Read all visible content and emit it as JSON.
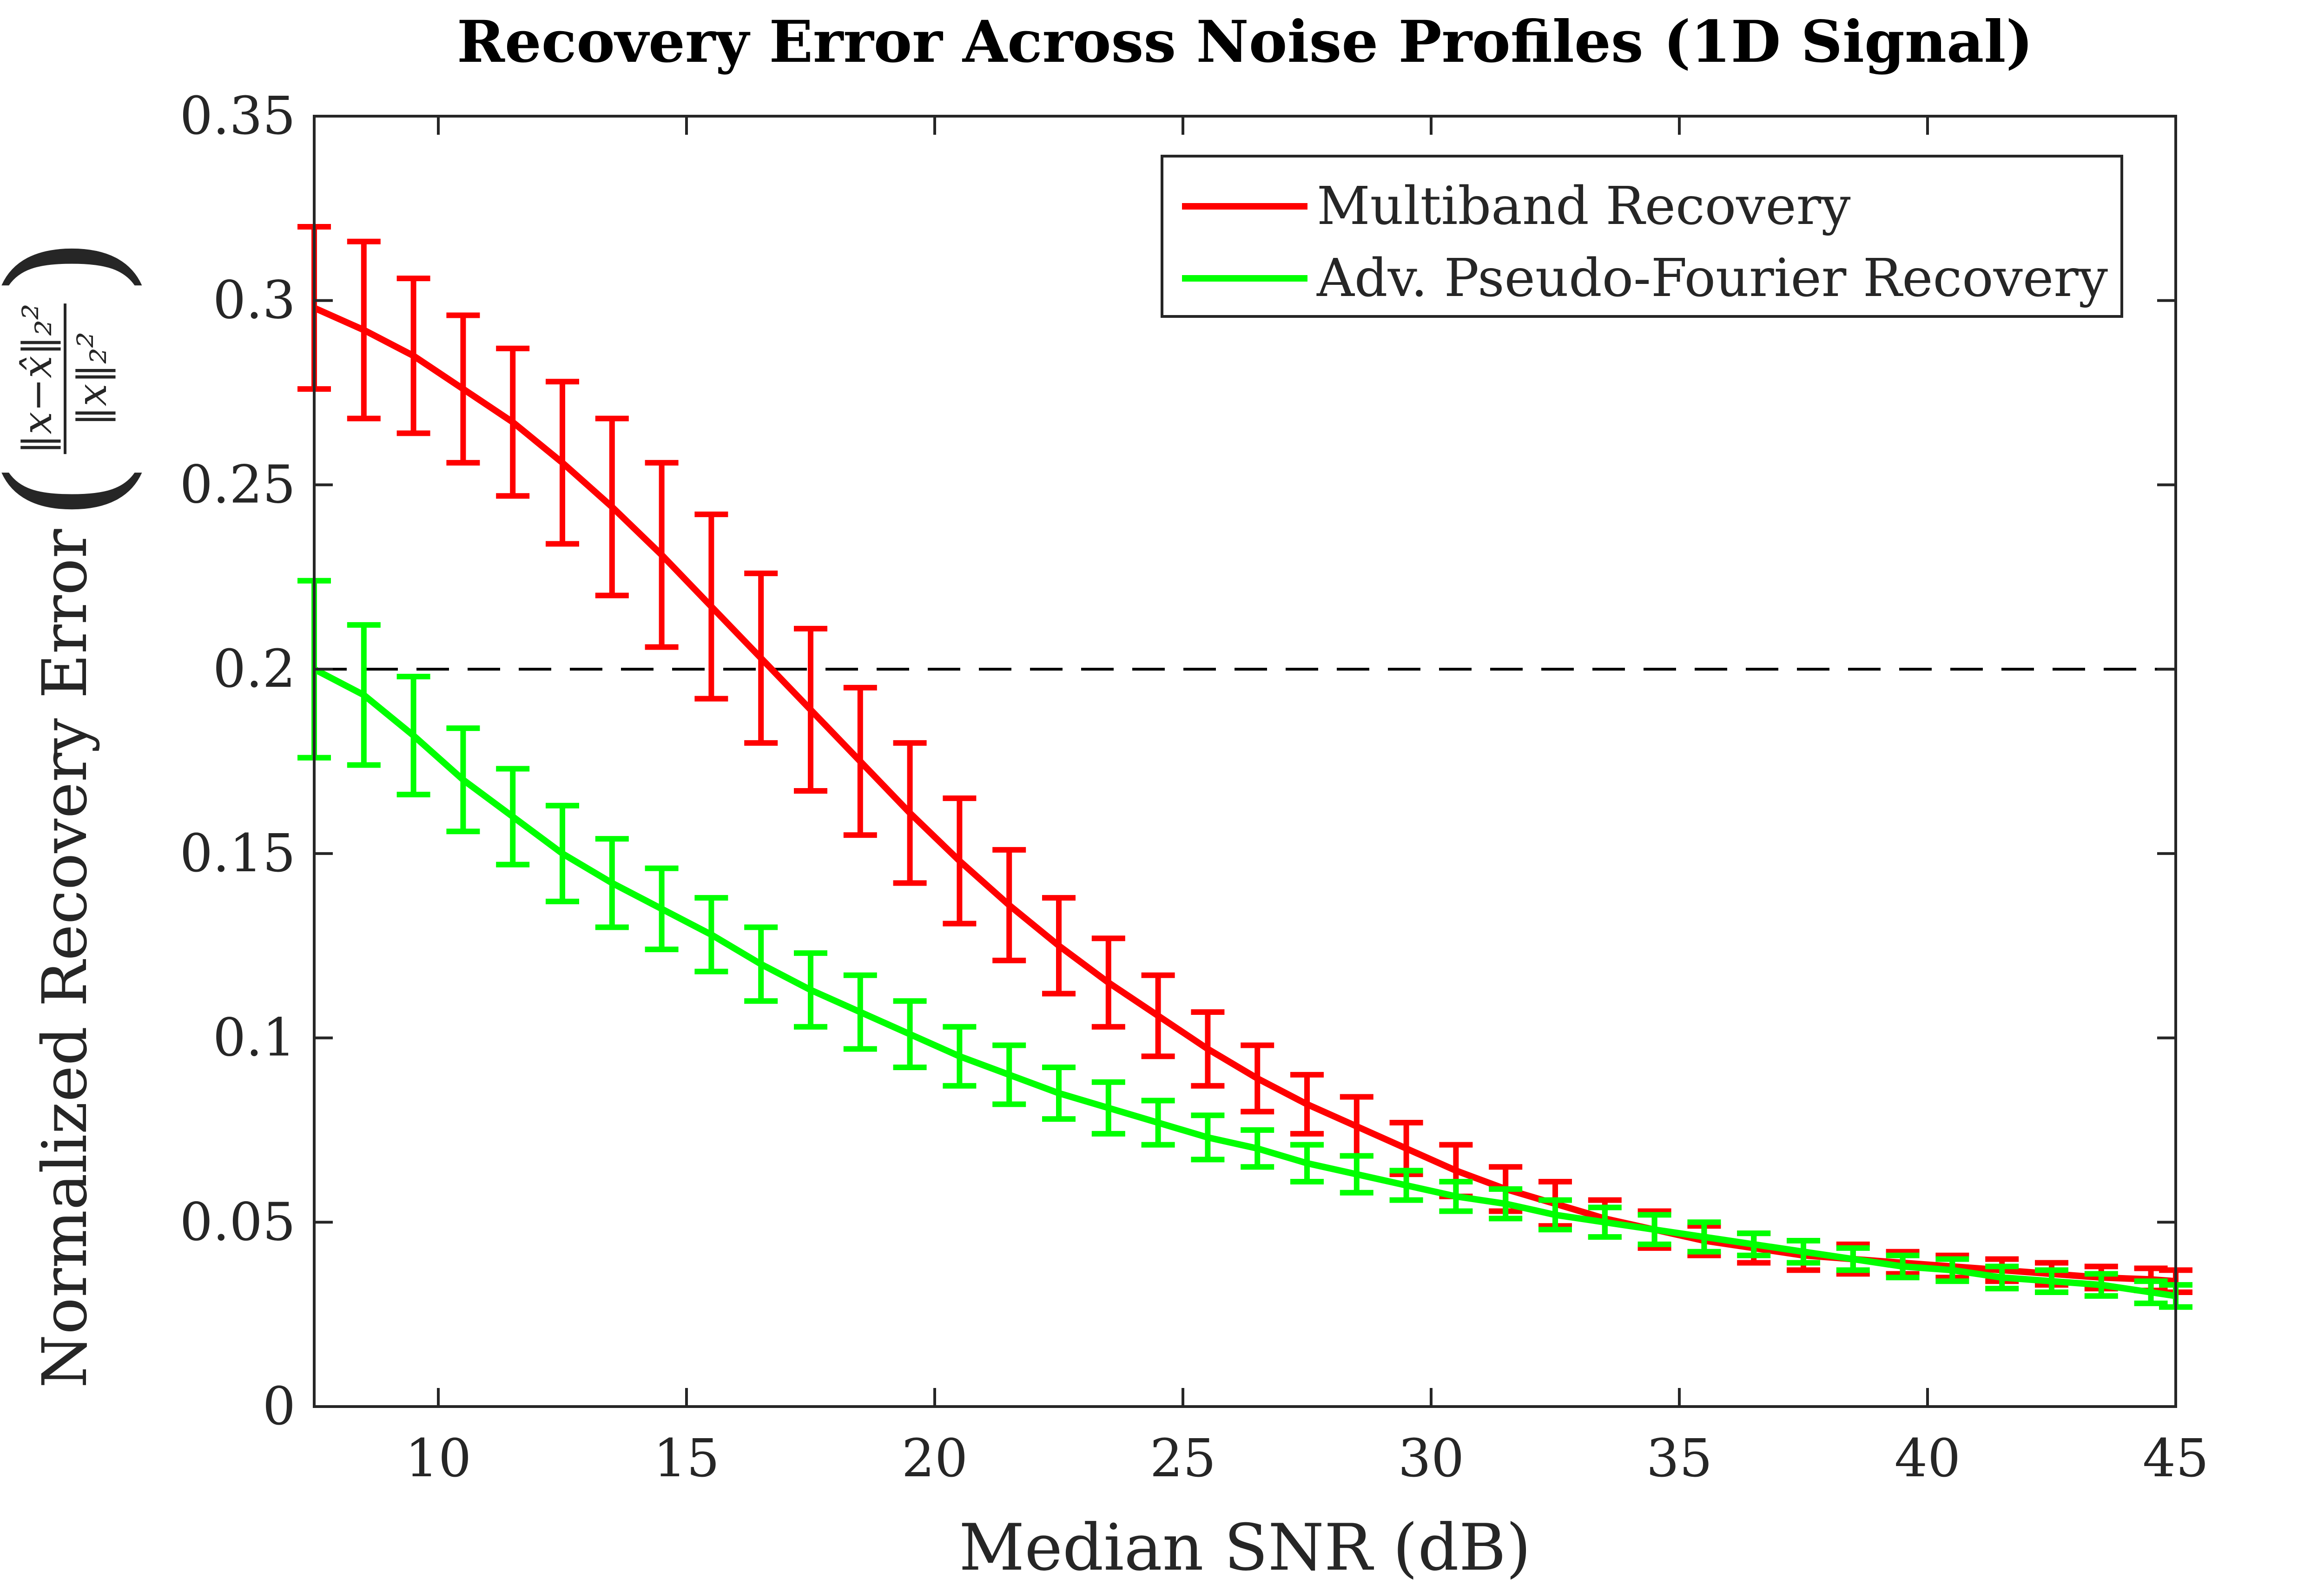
{
  "chart_data": {
    "type": "line",
    "title": "Recovery Error Across Noise Profiles (1D Signal)",
    "xlabel": "Median SNR (dB)",
    "ylabel_text": "Normalized Recovery Error",
    "ylabel_formula_numerator": "‖x−x̂‖₂²",
    "ylabel_formula_denominator": "‖x‖₂²",
    "xlim": [
      7.5,
      45
    ],
    "ylim": [
      0,
      0.35
    ],
    "xticks": [
      10,
      15,
      20,
      25,
      30,
      35,
      40,
      45
    ],
    "xtick_labels": [
      "10",
      "15",
      "20",
      "25",
      "30",
      "35",
      "40",
      "45"
    ],
    "yticks": [
      0,
      0.05,
      0.1,
      0.15,
      0.2,
      0.25,
      0.3,
      0.35
    ],
    "ytick_labels": [
      "0",
      "0.05",
      "0.1",
      "0.15",
      "0.2",
      "0.25",
      "0.3",
      "0.35"
    ],
    "reference_line": {
      "y": 0.2,
      "style": "dashed",
      "color": "#000000"
    },
    "legend_position": "top-right",
    "x": [
      7.5,
      8.5,
      9.5,
      10.5,
      11.5,
      12.5,
      13.5,
      14.5,
      15.5,
      16.5,
      17.5,
      18.5,
      19.5,
      20.5,
      21.5,
      22.5,
      23.5,
      24.5,
      25.5,
      26.5,
      27.5,
      28.5,
      29.5,
      30.5,
      31.5,
      32.5,
      33.5,
      34.5,
      35.5,
      36.5,
      37.5,
      38.5,
      39.5,
      40.5,
      41.5,
      42.5,
      43.5,
      44.5,
      45
    ],
    "series": [
      {
        "name": "Multiband Recovery",
        "color": "#ff0000",
        "values": [
          0.298,
          0.292,
          0.285,
          0.276,
          0.267,
          0.256,
          0.244,
          0.231,
          0.217,
          0.203,
          0.189,
          0.175,
          0.161,
          0.148,
          0.136,
          0.125,
          0.115,
          0.106,
          0.097,
          0.089,
          0.082,
          0.076,
          0.07,
          0.064,
          0.059,
          0.055,
          0.051,
          0.048,
          0.045,
          0.043,
          0.041,
          0.04,
          0.039,
          0.038,
          0.037,
          0.036,
          0.035,
          0.0345,
          0.034
        ],
        "errors": [
          0.022,
          0.024,
          0.021,
          0.02,
          0.02,
          0.022,
          0.024,
          0.025,
          0.025,
          0.023,
          0.022,
          0.02,
          0.019,
          0.017,
          0.015,
          0.013,
          0.012,
          0.011,
          0.01,
          0.009,
          0.008,
          0.008,
          0.007,
          0.007,
          0.006,
          0.006,
          0.005,
          0.005,
          0.004,
          0.004,
          0.004,
          0.004,
          0.003,
          0.003,
          0.003,
          0.003,
          0.003,
          0.003,
          0.003
        ]
      },
      {
        "name": "Adv. Pseudo-Fourier Recovery",
        "color": "#00ff00",
        "values": [
          0.2,
          0.193,
          0.182,
          0.17,
          0.16,
          0.15,
          0.142,
          0.135,
          0.128,
          0.12,
          0.113,
          0.107,
          0.101,
          0.095,
          0.09,
          0.085,
          0.081,
          0.077,
          0.073,
          0.07,
          0.066,
          0.063,
          0.06,
          0.057,
          0.055,
          0.052,
          0.05,
          0.048,
          0.046,
          0.044,
          0.042,
          0.04,
          0.038,
          0.037,
          0.035,
          0.034,
          0.033,
          0.031,
          0.03
        ],
        "errors": [
          0.024,
          0.019,
          0.016,
          0.014,
          0.013,
          0.013,
          0.012,
          0.011,
          0.01,
          0.01,
          0.01,
          0.01,
          0.009,
          0.008,
          0.008,
          0.007,
          0.007,
          0.006,
          0.006,
          0.005,
          0.005,
          0.005,
          0.004,
          0.004,
          0.004,
          0.004,
          0.004,
          0.004,
          0.004,
          0.003,
          0.003,
          0.003,
          0.003,
          0.003,
          0.003,
          0.003,
          0.003,
          0.003,
          0.003
        ]
      }
    ]
  }
}
